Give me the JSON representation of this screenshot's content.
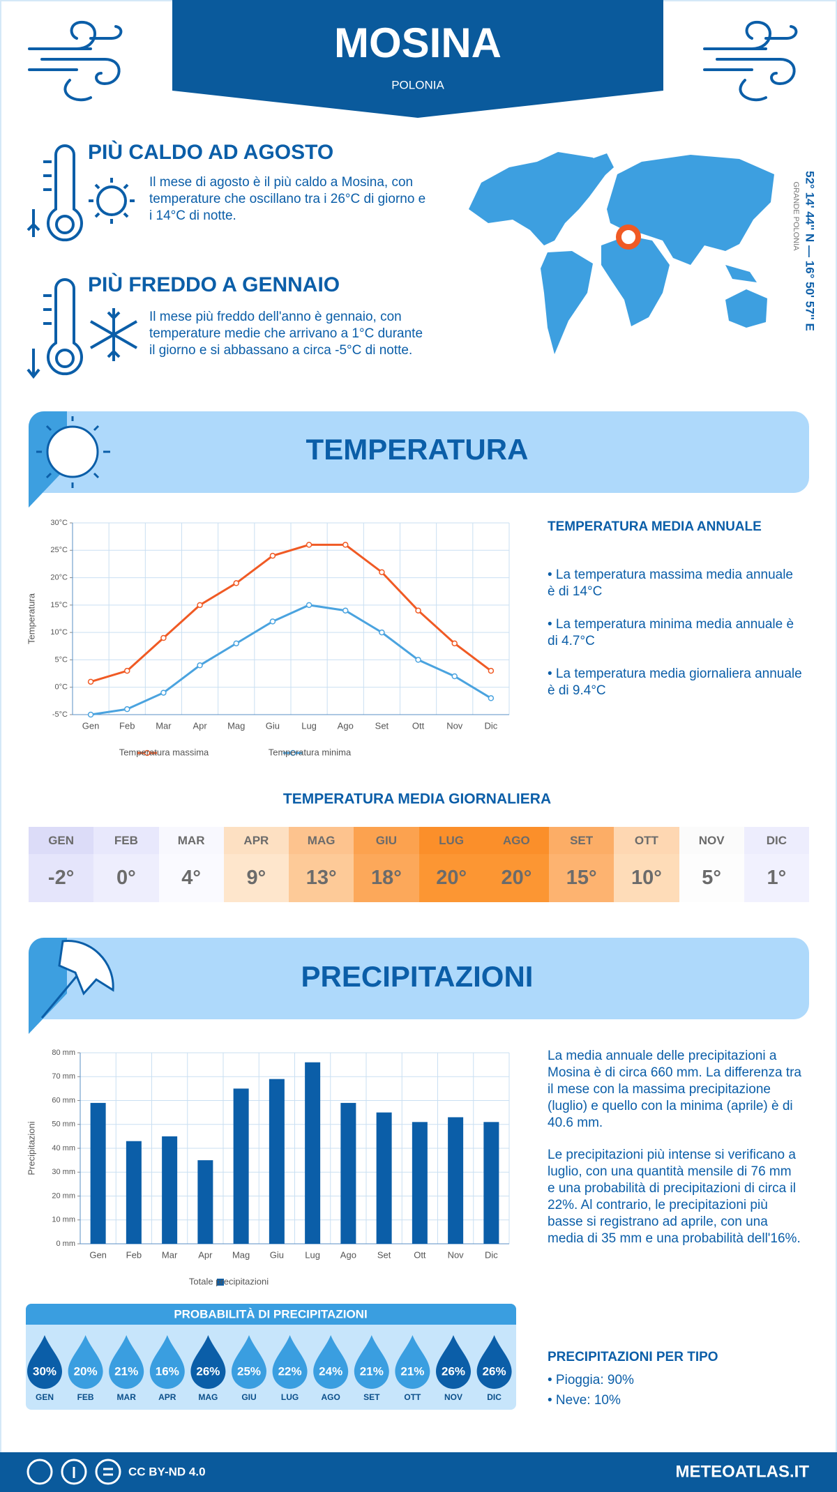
{
  "header": {
    "title": "MOSINA",
    "subtitle": "POLONIA"
  },
  "highlights": [
    {
      "title": "PIÙ CALDO AD AGOSTO",
      "text": "Il mese di agosto è il più caldo a Mosina, con temperature che oscillano tra i 26°C di giorno e i 14°C di notte."
    },
    {
      "title": "PIÙ FREDDO A GENNAIO",
      "text": "Il mese più freddo dell'anno è gennaio, con temperature medie che arrivano a 1°C durante il giorno e si abbassano a circa -5°C di notte."
    }
  ],
  "location": {
    "coordinates": "52° 14' 44'' N — 16° 50' 57'' E",
    "region": "GRANDE POLONIA"
  },
  "temperature_section": {
    "title": "TEMPERATURA",
    "summary_title": "TEMPERATURA MEDIA ANNUALE",
    "bullets": [
      "• La temperatura massima media annuale è di 14°C",
      "• La temperatura minima media annuale è di 4.7°C",
      "• La temperatura media giornaliera annuale è di 9.4°C"
    ],
    "daily_title": "TEMPERATURA MEDIA GIORNALIERA",
    "daily": {
      "months": [
        "GEN",
        "FEB",
        "MAR",
        "APR",
        "MAG",
        "GIU",
        "LUG",
        "AGO",
        "SET",
        "OTT",
        "NOV",
        "DIC"
      ],
      "values": [
        "-2°",
        "0°",
        "4°",
        "9°",
        "13°",
        "18°",
        "20°",
        "20°",
        "15°",
        "10°",
        "5°",
        "1°"
      ],
      "header_colors": [
        "#dcdcf8",
        "#e8e8fc",
        "#f8f8fe",
        "#fde0c2",
        "#fdc38e",
        "#fca24f",
        "#fb8f2a",
        "#fb8f2a",
        "#fcad66",
        "#fed7b2",
        "#fbfbfb",
        "#ededfd"
      ],
      "value_colors": [
        "#e5e5fb",
        "#eeeefd",
        "#fafaff",
        "#fee6cc",
        "#fdca98",
        "#fca85a",
        "#fc9633",
        "#fc9633",
        "#fdb370",
        "#fedcb8",
        "#fdfdfd",
        "#f1f1fe"
      ]
    }
  },
  "precipitation_section": {
    "title": "PRECIPITAZIONI",
    "paragraphs": [
      "La media annuale delle precipitazioni a Mosina è di circa 660 mm. La differenza tra il mese con la massima precipitazione (luglio) e quello con la minima (aprile) è di 40.6 mm.",
      "Le precipitazioni più intense si verificano a luglio, con una quantità mensile di 76 mm e una probabilità di precipitazioni di circa il 22%. Al contrario, le precipitazioni più basse si registrano ad aprile, con una media di 35 mm e una probabilità dell'16%."
    ],
    "probability": {
      "title": "PROBABILITÀ DI PRECIPITAZIONI",
      "months": [
        "GEN",
        "FEB",
        "MAR",
        "APR",
        "MAG",
        "GIU",
        "LUG",
        "AGO",
        "SET",
        "OTT",
        "NOV",
        "DIC"
      ],
      "values": [
        "30%",
        "20%",
        "21%",
        "16%",
        "26%",
        "25%",
        "22%",
        "24%",
        "21%",
        "21%",
        "26%",
        "26%"
      ],
      "colors": [
        "#0b5ea8",
        "#3a9ee0",
        "#3a9ee0",
        "#3a9ee0",
        "#0b5ea8",
        "#3a9ee0",
        "#3a9ee0",
        "#3a9ee0",
        "#3a9ee0",
        "#3a9ee0",
        "#0b5ea8",
        "#0b5ea8"
      ]
    },
    "type_title": "PRECIPITAZIONI PER TIPO",
    "types": [
      "• Pioggia: 90%",
      "• Neve: 10%"
    ]
  },
  "footer": {
    "license": "CC BY-ND 4.0",
    "site": "METEOATLAS.IT"
  },
  "chart_data": [
    {
      "type": "line",
      "ylabel": "Temperatura",
      "categories": [
        "Gen",
        "Feb",
        "Mar",
        "Apr",
        "Mag",
        "Giu",
        "Lug",
        "Ago",
        "Set",
        "Ott",
        "Nov",
        "Dic"
      ],
      "series": [
        {
          "name": "Temperatura massima",
          "color": "#f05a24",
          "values": [
            1,
            3,
            9,
            15,
            19,
            24,
            26,
            26,
            21,
            14,
            8,
            3
          ]
        },
        {
          "name": "Temperatura minima",
          "color": "#4aa3df",
          "values": [
            -5,
            -4,
            -1,
            4,
            8,
            12,
            15,
            14,
            10,
            5,
            2,
            -2
          ]
        }
      ],
      "ylim": [
        -5,
        30
      ],
      "yticks": [
        {
          "value": -5,
          "label": "-5°C"
        },
        {
          "value": 0,
          "label": "0°C"
        },
        {
          "value": 5,
          "label": "5°C"
        },
        {
          "value": 10,
          "label": "10°C"
        },
        {
          "value": 15,
          "label": "15°C"
        },
        {
          "value": 20,
          "label": "20°C"
        },
        {
          "value": 25,
          "label": "25°C"
        },
        {
          "value": 30,
          "label": "30°C"
        }
      ],
      "grid": true
    },
    {
      "type": "bar",
      "ylabel": "Precipitazioni",
      "categories": [
        "Gen",
        "Feb",
        "Mar",
        "Apr",
        "Mag",
        "Giu",
        "Lug",
        "Ago",
        "Set",
        "Ott",
        "Nov",
        "Dic"
      ],
      "series": [
        {
          "name": "Totale precipitazioni",
          "color": "#0b5ea8",
          "values": [
            59,
            43,
            45,
            35,
            65,
            69,
            76,
            59,
            55,
            51,
            53,
            51
          ]
        }
      ],
      "ylim": [
        0,
        80
      ],
      "yticks": [
        {
          "value": 0,
          "label": "0 mm"
        },
        {
          "value": 10,
          "label": "10 mm"
        },
        {
          "value": 20,
          "label": "20 mm"
        },
        {
          "value": 30,
          "label": "30 mm"
        },
        {
          "value": 40,
          "label": "40 mm"
        },
        {
          "value": 50,
          "label": "50 mm"
        },
        {
          "value": 60,
          "label": "60 mm"
        },
        {
          "value": 70,
          "label": "70 mm"
        },
        {
          "value": 80,
          "label": "80 mm"
        }
      ],
      "grid": true
    }
  ]
}
